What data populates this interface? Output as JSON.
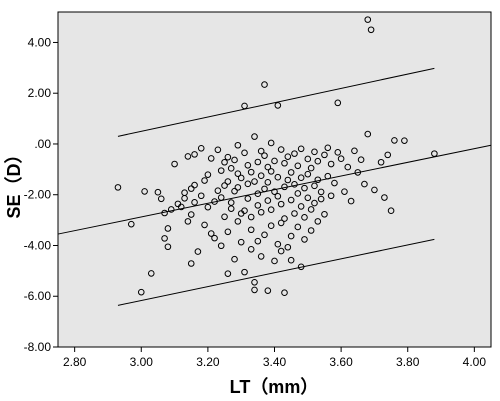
{
  "chart_data": {
    "type": "scatter",
    "title": "",
    "xlabel": "LT（mm）",
    "ylabel": "SE（D）",
    "xlim": [
      2.75,
      4.05
    ],
    "ylim": [
      -8.0,
      5.2
    ],
    "grid": false,
    "colors": {
      "plot_background": "#e6e6e6",
      "points": "#000000",
      "lines": "#000000"
    },
    "x_ticks": [
      {
        "value": 2.8,
        "label": "2.80"
      },
      {
        "value": 3.0,
        "label": "3.00"
      },
      {
        "value": 3.2,
        "label": "3.20"
      },
      {
        "value": 3.4,
        "label": "3.40"
      },
      {
        "value": 3.6,
        "label": "3.60"
      },
      {
        "value": 3.8,
        "label": "3.80"
      },
      {
        "value": 4.0,
        "label": "4.00"
      }
    ],
    "y_ticks": [
      {
        "value": 4,
        "label": "4.00"
      },
      {
        "value": 2,
        "label": "2.00"
      },
      {
        "value": 0,
        "label": ".00"
      },
      {
        "value": -2,
        "label": "-2.00"
      },
      {
        "value": -4,
        "label": "-4.00"
      },
      {
        "value": -6,
        "label": "-6.00"
      },
      {
        "value": -8,
        "label": "-8.00"
      }
    ],
    "lines": [
      {
        "kind": "fit",
        "x": [
          2.75,
          4.05
        ],
        "y": [
          -3.55,
          -0.05
        ]
      },
      {
        "kind": "upper",
        "x": [
          2.93,
          3.88
        ],
        "y": [
          0.3,
          2.98
        ]
      },
      {
        "kind": "lower",
        "x": [
          2.93,
          3.88
        ],
        "y": [
          -6.36,
          -3.76
        ]
      }
    ],
    "points": [
      [
        2.93,
        -1.71
      ],
      [
        2.97,
        -3.16
      ],
      [
        3.0,
        -5.84
      ],
      [
        3.01,
        -1.87
      ],
      [
        3.03,
        -5.1
      ],
      [
        3.05,
        -1.9
      ],
      [
        3.06,
        -2.16
      ],
      [
        3.07,
        -2.72
      ],
      [
        3.07,
        -3.72
      ],
      [
        3.08,
        -4.05
      ],
      [
        3.08,
        -3.33
      ],
      [
        3.09,
        -2.58
      ],
      [
        3.1,
        -0.79
      ],
      [
        3.11,
        -2.36
      ],
      [
        3.12,
        -2.48
      ],
      [
        3.13,
        -1.92
      ],
      [
        3.13,
        -2.14
      ],
      [
        3.14,
        -0.49
      ],
      [
        3.14,
        -3.05
      ],
      [
        3.15,
        -2.78
      ],
      [
        3.15,
        -1.76
      ],
      [
        3.15,
        -4.71
      ],
      [
        3.16,
        -0.41
      ],
      [
        3.16,
        -2.3
      ],
      [
        3.16,
        -1.62
      ],
      [
        3.17,
        -4.24
      ],
      [
        3.18,
        -2.04
      ],
      [
        3.18,
        -0.17
      ],
      [
        3.19,
        -3.19
      ],
      [
        3.19,
        -1.44
      ],
      [
        3.2,
        -2.49
      ],
      [
        3.2,
        -1.21
      ],
      [
        3.21,
        -3.53
      ],
      [
        3.21,
        -0.57
      ],
      [
        3.22,
        -2.27
      ],
      [
        3.22,
        -3.71
      ],
      [
        3.23,
        -0.23
      ],
      [
        3.23,
        -1.84
      ],
      [
        3.24,
        -2.11
      ],
      [
        3.24,
        -1.05
      ],
      [
        3.24,
        -4.01
      ],
      [
        3.25,
        -2.87
      ],
      [
        3.25,
        -0.72
      ],
      [
        3.25,
        -1.64
      ],
      [
        3.26,
        -5.11
      ],
      [
        3.26,
        -3.46
      ],
      [
        3.26,
        -1.48
      ],
      [
        3.26,
        -0.52
      ],
      [
        3.27,
        -2.55
      ],
      [
        3.27,
        -2.31
      ],
      [
        3.27,
        -0.96
      ],
      [
        3.28,
        -4.54
      ],
      [
        3.28,
        -1.86
      ],
      [
        3.28,
        -0.63
      ],
      [
        3.29,
        -1.17
      ],
      [
        3.29,
        -3.05
      ],
      [
        3.29,
        -1.71
      ],
      [
        3.29,
        -0.05
      ],
      [
        3.3,
        -2.74
      ],
      [
        3.3,
        -3.87
      ],
      [
        3.3,
        -1.34
      ],
      [
        3.31,
        1.5
      ],
      [
        3.31,
        -0.35
      ],
      [
        3.31,
        -2.63
      ],
      [
        3.31,
        -5.05
      ],
      [
        3.32,
        -1.57
      ],
      [
        3.32,
        -2.15
      ],
      [
        3.32,
        -0.84
      ],
      [
        3.33,
        -3.38
      ],
      [
        3.33,
        -4.15
      ],
      [
        3.33,
        -1.11
      ],
      [
        3.33,
        -2.88
      ],
      [
        3.34,
        -5.75
      ],
      [
        3.34,
        -5.45
      ],
      [
        3.34,
        0.29
      ],
      [
        3.34,
        -1.48
      ],
      [
        3.35,
        -2.42
      ],
      [
        3.35,
        -0.71
      ],
      [
        3.35,
        -3.83
      ],
      [
        3.35,
        -1.96
      ],
      [
        3.36,
        -0.28
      ],
      [
        3.36,
        -2.69
      ],
      [
        3.36,
        -1.25
      ],
      [
        3.36,
        -4.43
      ],
      [
        3.37,
        -3.58
      ],
      [
        3.37,
        2.34
      ],
      [
        3.37,
        -0.46
      ],
      [
        3.37,
        -1.77
      ],
      [
        3.38,
        -5.78
      ],
      [
        3.38,
        -2.23
      ],
      [
        3.38,
        -0.91
      ],
      [
        3.38,
        -1.51
      ],
      [
        3.39,
        -3.22
      ],
      [
        3.39,
        0.04
      ],
      [
        3.39,
        -2.59
      ],
      [
        3.39,
        -1.08
      ],
      [
        3.4,
        -4.61
      ],
      [
        3.4,
        -1.88
      ],
      [
        3.4,
        -0.67
      ],
      [
        3.41,
        1.52
      ],
      [
        3.41,
        -3.95
      ],
      [
        3.41,
        -2.06
      ],
      [
        3.41,
        -1.31
      ],
      [
        3.42,
        -4.22
      ],
      [
        3.42,
        -0.22
      ],
      [
        3.42,
        -2.37
      ],
      [
        3.42,
        -3.11
      ],
      [
        3.43,
        -1.69
      ],
      [
        3.43,
        -5.86
      ],
      [
        3.43,
        -0.76
      ],
      [
        3.43,
        -2.94
      ],
      [
        3.44,
        -4.07
      ],
      [
        3.44,
        -1.42
      ],
      [
        3.44,
        -0.5
      ],
      [
        3.45,
        -3.63
      ],
      [
        3.45,
        -2.21
      ],
      [
        3.45,
        -1.12
      ],
      [
        3.45,
        -4.58
      ],
      [
        3.46,
        -0.38
      ],
      [
        3.46,
        -2.74
      ],
      [
        3.46,
        -1.59
      ],
      [
        3.47,
        -3.27
      ],
      [
        3.47,
        -1.95
      ],
      [
        3.47,
        -0.86
      ],
      [
        3.48,
        -2.46
      ],
      [
        3.48,
        -4.84
      ],
      [
        3.48,
        -1.33
      ],
      [
        3.48,
        -0.19
      ],
      [
        3.49,
        -2.89
      ],
      [
        3.49,
        -1.74
      ],
      [
        3.49,
        -3.76
      ],
      [
        3.5,
        -0.59
      ],
      [
        3.5,
        -2.12
      ],
      [
        3.5,
        -1.19
      ],
      [
        3.51,
        -3.41
      ],
      [
        3.51,
        -2.58
      ],
      [
        3.51,
        -0.95
      ],
      [
        3.52,
        -1.65
      ],
      [
        3.52,
        -0.31
      ],
      [
        3.52,
        -2.33
      ],
      [
        3.53,
        -3.05
      ],
      [
        3.53,
        -1.41
      ],
      [
        3.53,
        -0.68
      ],
      [
        3.54,
        -2.17
      ],
      [
        3.54,
        -1.89
      ],
      [
        3.55,
        -0.43
      ],
      [
        3.55,
        -2.77
      ],
      [
        3.56,
        -1.27
      ],
      [
        3.56,
        -0.15
      ],
      [
        3.57,
        -2.04
      ],
      [
        3.57,
        -0.79
      ],
      [
        3.58,
        -1.54
      ],
      [
        3.59,
        1.62
      ],
      [
        3.59,
        -0.33
      ],
      [
        3.6,
        -0.58
      ],
      [
        3.61,
        -1.88
      ],
      [
        3.62,
        -0.91
      ],
      [
        3.63,
        -2.25
      ],
      [
        3.64,
        -0.27
      ],
      [
        3.65,
        -1.12
      ],
      [
        3.66,
        -0.62
      ],
      [
        3.67,
        -1.58
      ],
      [
        3.68,
        0.39
      ],
      [
        3.68,
        4.9
      ],
      [
        3.69,
        4.5
      ],
      [
        3.7,
        -1.81
      ],
      [
        3.72,
        -0.72
      ],
      [
        3.73,
        -2.11
      ],
      [
        3.74,
        -0.43
      ],
      [
        3.75,
        -2.63
      ],
      [
        3.76,
        0.14
      ],
      [
        3.79,
        0.13
      ],
      [
        3.88,
        -0.38
      ]
    ]
  }
}
